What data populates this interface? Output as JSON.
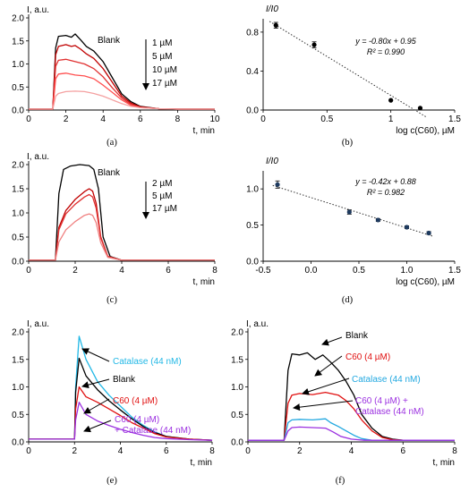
{
  "chart_data": [
    {
      "panel": "(a)",
      "type": "line",
      "ylabel": "I, a.u.",
      "xlabel": "t, min",
      "xlim": [
        0,
        10
      ],
      "ylim": [
        0,
        2.0
      ],
      "xticks": [
        "0",
        "2",
        "4",
        "6",
        "8",
        "10"
      ],
      "yticks": [
        "0.0",
        "0.5",
        "1.0",
        "1.5",
        "2.0"
      ],
      "blank_label": "Blank",
      "legend_labels": [
        "1 µM",
        "5 µM",
        "10 µM",
        "17 µM"
      ],
      "series": [
        {
          "name": "Blank",
          "color": "#000000",
          "x": [
            0,
            1.3,
            1.45,
            1.6,
            2,
            2.3,
            2.5,
            2.8,
            3.1,
            3.5,
            4,
            4.5,
            5,
            5.5,
            6,
            7,
            8,
            10
          ],
          "y": [
            0.02,
            0.02,
            1.35,
            1.6,
            1.62,
            1.58,
            1.65,
            1.52,
            1.38,
            1.28,
            1.05,
            0.7,
            0.35,
            0.18,
            0.08,
            0.03,
            0.02,
            0.02
          ]
        },
        {
          "name": "1 µM",
          "color": "#c00000",
          "x": [
            0,
            1.3,
            1.45,
            1.6,
            2,
            2.3,
            2.5,
            2.8,
            3.1,
            3.5,
            4,
            4.5,
            5,
            5.5,
            6,
            7,
            8,
            10
          ],
          "y": [
            0.02,
            0.02,
            1.2,
            1.38,
            1.42,
            1.38,
            1.4,
            1.32,
            1.22,
            1.12,
            0.9,
            0.6,
            0.3,
            0.15,
            0.07,
            0.03,
            0.02,
            0.02
          ]
        },
        {
          "name": "5 µM",
          "color": "#e03030",
          "x": [
            0,
            1.3,
            1.45,
            1.6,
            2,
            2.5,
            3,
            3.5,
            4,
            4.5,
            5,
            5.5,
            6,
            7,
            8,
            10
          ],
          "y": [
            0.02,
            0.02,
            0.95,
            1.08,
            1.1,
            1.05,
            1.0,
            0.9,
            0.72,
            0.48,
            0.26,
            0.12,
            0.06,
            0.03,
            0.02,
            0.02
          ]
        },
        {
          "name": "10 µM",
          "color": "#ff5050",
          "x": [
            0,
            1.3,
            1.45,
            1.6,
            2,
            2.5,
            3,
            3.5,
            4,
            4.5,
            5,
            5.5,
            6,
            7,
            8,
            10
          ],
          "y": [
            0.02,
            0.02,
            0.68,
            0.78,
            0.8,
            0.76,
            0.74,
            0.68,
            0.54,
            0.38,
            0.22,
            0.1,
            0.05,
            0.03,
            0.02,
            0.02
          ]
        },
        {
          "name": "17 µM",
          "color": "#f4a0a0",
          "x": [
            0,
            1.3,
            1.45,
            1.6,
            2,
            2.5,
            3,
            3.5,
            4,
            4.5,
            5,
            5.5,
            6,
            7,
            8,
            10
          ],
          "y": [
            0.02,
            0.02,
            0.3,
            0.36,
            0.4,
            0.41,
            0.4,
            0.36,
            0.3,
            0.22,
            0.14,
            0.08,
            0.05,
            0.03,
            0.02,
            0.02
          ]
        }
      ]
    },
    {
      "panel": "(b)",
      "type": "scatter",
      "ylabel": "I/I0",
      "xlabel": "log c(C60), µM",
      "xlim": [
        0,
        1.5
      ],
      "ylim": [
        0,
        0.9
      ],
      "xticks": [
        "0",
        "0.5",
        "1",
        "1.5"
      ],
      "yticks": [
        "0.0",
        "0.4",
        "0.8"
      ],
      "equation": "y = -0.80x + 0.95",
      "r2": "R² = 0.990",
      "points": {
        "x": [
          0.1,
          0.4,
          1.0,
          1.23
        ],
        "y": [
          0.87,
          0.67,
          0.1,
          0.02
        ],
        "err": [
          0.03,
          0.03,
          0,
          0
        ]
      },
      "trend": {
        "slope": -0.8,
        "intercept": 0.95
      }
    },
    {
      "panel": "(c)",
      "type": "line",
      "ylabel": "I, a.u.",
      "xlabel": "t, min",
      "xlim": [
        0,
        8
      ],
      "ylim": [
        0,
        2.0
      ],
      "xticks": [
        "0",
        "2",
        "4",
        "6",
        "8"
      ],
      "yticks": [
        "0.0",
        "0.5",
        "1.0",
        "1.5",
        "2.0"
      ],
      "blank_label": "Blank",
      "legend_labels": [
        "2 µM",
        "5 µM",
        "17 µM"
      ],
      "series": [
        {
          "name": "Blank",
          "color": "#000000",
          "x": [
            0,
            1.15,
            1.3,
            1.5,
            1.8,
            2.2,
            2.6,
            2.8,
            3.0,
            3.2,
            3.5,
            4,
            8
          ],
          "y": [
            0.02,
            0.02,
            1.4,
            1.9,
            1.97,
            2.0,
            1.98,
            1.9,
            1.5,
            0.5,
            0.1,
            0.02,
            0.02
          ]
        },
        {
          "name": "2 µM",
          "color": "#c00000",
          "x": [
            0,
            1.15,
            1.3,
            1.6,
            2.0,
            2.4,
            2.6,
            2.75,
            2.9,
            3.1,
            3.4,
            4,
            8
          ],
          "y": [
            0.02,
            0.02,
            0.7,
            1.05,
            1.28,
            1.44,
            1.5,
            1.45,
            1.2,
            0.5,
            0.1,
            0.02,
            0.02
          ]
        },
        {
          "name": "5 µM",
          "color": "#e03030",
          "x": [
            0,
            1.15,
            1.3,
            1.6,
            2.0,
            2.4,
            2.6,
            2.75,
            2.9,
            3.1,
            3.4,
            4,
            8
          ],
          "y": [
            0.02,
            0.02,
            0.65,
            0.98,
            1.18,
            1.33,
            1.38,
            1.33,
            1.1,
            0.48,
            0.1,
            0.02,
            0.02
          ]
        },
        {
          "name": "17 µM",
          "color": "#f08080",
          "x": [
            0,
            1.15,
            1.3,
            1.6,
            2.0,
            2.4,
            2.6,
            2.75,
            2.9,
            3.1,
            3.4,
            4,
            8
          ],
          "y": [
            0.02,
            0.02,
            0.4,
            0.65,
            0.82,
            0.95,
            0.98,
            0.95,
            0.8,
            0.38,
            0.08,
            0.02,
            0.02
          ]
        }
      ]
    },
    {
      "panel": "(d)",
      "type": "scatter",
      "ylabel": "I/I0",
      "xlabel": "log c(C60), µM",
      "xlim": [
        -0.5,
        1.5
      ],
      "ylim": [
        0,
        1.2
      ],
      "xticks": [
        "-0.5",
        "0.0",
        "0.5",
        "1.0",
        "1.5"
      ],
      "yticks": [
        "0.0",
        "0.5",
        "1.0"
      ],
      "equation": "y = -0.42x + 0.88",
      "r2": "R² = 0.982",
      "points": {
        "x": [
          -0.35,
          0.4,
          0.7,
          1.0,
          1.23
        ],
        "y": [
          1.06,
          0.68,
          0.57,
          0.47,
          0.39
        ],
        "err": [
          0.05,
          0.03,
          0.02,
          0.02,
          0.02
        ]
      },
      "trend": {
        "slope": -0.42,
        "intercept": 0.88
      }
    },
    {
      "panel": "(e)",
      "type": "line",
      "ylabel": "I, a.u.",
      "xlabel": "t, min",
      "xlim": [
        0,
        8
      ],
      "ylim": [
        0,
        2.0
      ],
      "xticks": [
        "0",
        "2",
        "4",
        "6",
        "8"
      ],
      "yticks": [
        "0.0",
        "0.5",
        "1.0",
        "1.5",
        "2.0"
      ],
      "annotations": [
        "Catalase (44 nM)",
        "Blank",
        "C60 (4 µM)",
        "C60 (4 µM)",
        "+ Catalase (44 nM)"
      ],
      "series": [
        {
          "name": "Catalase (44 nM)",
          "color": "#22b8e6",
          "x": [
            0,
            2.0,
            2.05,
            2.2,
            2.5,
            3,
            3.5,
            4,
            4.5,
            5,
            5.5,
            6,
            7,
            8
          ],
          "y": [
            0.05,
            0.05,
            1.0,
            1.92,
            1.5,
            1.1,
            0.85,
            0.65,
            0.45,
            0.3,
            0.18,
            0.1,
            0.05,
            0.03
          ]
        },
        {
          "name": "Blank",
          "color": "#000000",
          "x": [
            0,
            2.0,
            2.05,
            2.2,
            2.5,
            3,
            3.5,
            4,
            4.5,
            5,
            5.5,
            6,
            7,
            8
          ],
          "y": [
            0.05,
            0.05,
            0.9,
            1.52,
            1.2,
            0.95,
            0.75,
            0.58,
            0.42,
            0.28,
            0.17,
            0.1,
            0.05,
            0.03
          ]
        },
        {
          "name": "C60 (4 µM)",
          "color": "#e01010",
          "x": [
            0,
            2.0,
            2.05,
            2.2,
            2.5,
            3,
            3.5,
            4,
            4.5,
            5,
            5.5,
            6,
            7,
            8
          ],
          "y": [
            0.05,
            0.05,
            0.6,
            1.0,
            0.82,
            0.72,
            0.6,
            0.48,
            0.35,
            0.25,
            0.15,
            0.09,
            0.05,
            0.03
          ]
        },
        {
          "name": "C60 (4 µM) + Catalase (44 nM)",
          "color": "#9b30e0",
          "x": [
            0,
            2.0,
            2.05,
            2.2,
            2.5,
            3,
            3.5,
            4,
            4.5,
            5,
            5.5,
            6,
            7,
            8
          ],
          "y": [
            0.05,
            0.05,
            0.4,
            0.72,
            0.5,
            0.38,
            0.3,
            0.23,
            0.17,
            0.12,
            0.08,
            0.06,
            0.04,
            0.03
          ]
        }
      ]
    },
    {
      "panel": "(f)",
      "type": "line",
      "ylabel": "I, a.u.",
      "xlabel": "t, min",
      "xlim": [
        0,
        8
      ],
      "ylim": [
        0,
        2.0
      ],
      "xticks": [
        "0",
        "2",
        "4",
        "6",
        "8"
      ],
      "yticks": [
        "0.0",
        "0.5",
        "1.0",
        "1.5",
        "2.0"
      ],
      "annotations": [
        "Blank",
        "C60 (4 µM)",
        "Catalase (44 nM)",
        "C60 (4 µM) +",
        "Catalase (44 nM)"
      ],
      "series": [
        {
          "name": "Blank",
          "color": "#000000",
          "x": [
            0,
            1.4,
            1.55,
            1.7,
            2.0,
            2.3,
            2.6,
            2.9,
            3.2,
            3.5,
            3.8,
            4.1,
            4.4,
            4.8,
            5.2,
            5.6,
            6,
            8
          ],
          "y": [
            0.03,
            0.03,
            1.3,
            1.6,
            1.58,
            1.62,
            1.5,
            1.58,
            1.45,
            1.3,
            1.1,
            0.85,
            0.5,
            0.25,
            0.1,
            0.05,
            0.03,
            0.03
          ]
        },
        {
          "name": "C60 (4 µM)",
          "color": "#e01010",
          "x": [
            0,
            1.4,
            1.55,
            1.7,
            2.0,
            2.5,
            3,
            3.5,
            3.8,
            4.1,
            4.4,
            4.8,
            5.2,
            5.6,
            6,
            8
          ],
          "y": [
            0.03,
            0.03,
            0.7,
            0.85,
            0.88,
            0.86,
            0.9,
            0.85,
            0.75,
            0.6,
            0.4,
            0.2,
            0.08,
            0.04,
            0.03,
            0.03
          ]
        },
        {
          "name": "Catalase (44 nM)",
          "color": "#22a8e0",
          "x": [
            0,
            1.4,
            1.55,
            1.7,
            2.0,
            2.5,
            3,
            3.2,
            3.5,
            3.8,
            4.1,
            4.4,
            4.8,
            5.2,
            6,
            8
          ],
          "y": [
            0.03,
            0.03,
            0.35,
            0.4,
            0.41,
            0.4,
            0.42,
            0.35,
            0.28,
            0.2,
            0.12,
            0.06,
            0.03,
            0.03,
            0.03,
            0.03
          ]
        },
        {
          "name": "C60 (4 µM) + Catalase (44 nM)",
          "color": "#9b30e0",
          "x": [
            0,
            1.4,
            1.55,
            1.7,
            2.0,
            2.5,
            3,
            3.3,
            3.6,
            4.0,
            4.5,
            5,
            6,
            8
          ],
          "y": [
            0.03,
            0.03,
            0.2,
            0.26,
            0.27,
            0.26,
            0.25,
            0.18,
            0.1,
            0.05,
            0.03,
            0.03,
            0.03,
            0.03
          ]
        }
      ]
    }
  ]
}
